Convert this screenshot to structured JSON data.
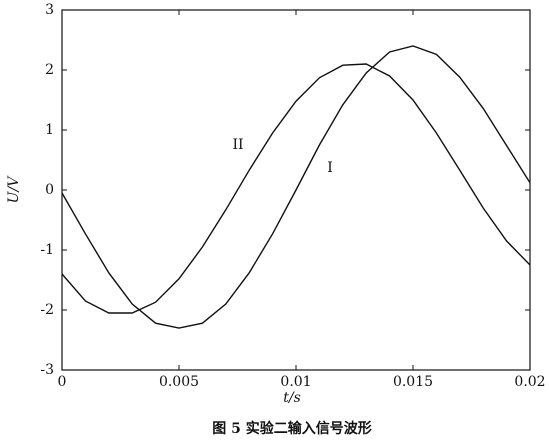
{
  "chart_data": {
    "type": "line",
    "caption": "图 5 实验二输入信号波形",
    "x_label": "t/s",
    "y_label": "U/V",
    "x": [
      0,
      0.001,
      0.002,
      0.003,
      0.004,
      0.005,
      0.006,
      0.007,
      0.008,
      0.009,
      0.01,
      0.011,
      0.012,
      0.013,
      0.014,
      0.015,
      0.016,
      0.017,
      0.018,
      0.019,
      0.02
    ],
    "series": [
      {
        "name": "I",
        "color": "#111111",
        "values": [
          -0.05,
          -0.73,
          -1.38,
          -1.9,
          -2.22,
          -2.3,
          -2.22,
          -1.9,
          -1.38,
          -0.73,
          0,
          0.75,
          1.42,
          1.95,
          2.3,
          2.4,
          2.26,
          1.88,
          1.36,
          0.74,
          0.12
        ]
      },
      {
        "name": "II",
        "color": "#111111",
        "values": [
          -1.4,
          -1.85,
          -2.05,
          -2.05,
          -1.87,
          -1.48,
          -0.95,
          -0.33,
          0.33,
          0.95,
          1.48,
          1.87,
          2.08,
          2.1,
          1.9,
          1.5,
          0.95,
          0.33,
          -0.3,
          -0.85,
          -1.25
        ]
      }
    ],
    "xlim": [
      0,
      0.02
    ],
    "xticks": [
      0,
      0.005,
      0.01,
      0.015,
      0.02
    ],
    "ylim": [
      -3,
      3
    ],
    "yticks": [
      -3,
      -2,
      -1,
      0,
      1,
      2,
      3
    ]
  }
}
